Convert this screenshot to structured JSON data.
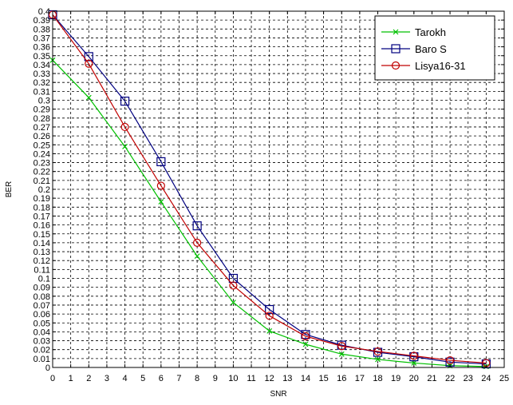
{
  "chart_data": {
    "type": "line",
    "xlabel": "SNR",
    "ylabel": "BER",
    "xlim": [
      0,
      25
    ],
    "ylim": [
      0,
      0.4
    ],
    "xticks": [
      0,
      1,
      2,
      3,
      4,
      5,
      6,
      7,
      8,
      9,
      10,
      11,
      12,
      13,
      14,
      15,
      16,
      17,
      18,
      19,
      20,
      21,
      22,
      23,
      24,
      25
    ],
    "yticks": [
      0,
      0.01,
      0.02,
      0.03,
      0.04,
      0.05,
      0.06,
      0.07,
      0.08,
      0.09,
      0.1,
      0.11,
      0.12,
      0.13,
      0.14,
      0.15,
      0.16,
      0.17,
      0.18,
      0.19,
      0.2,
      0.21,
      0.22,
      0.23,
      0.24,
      0.25,
      0.26,
      0.27,
      0.28,
      0.29,
      0.3,
      0.31,
      0.32,
      0.33,
      0.34,
      0.35,
      0.36,
      0.37,
      0.38,
      0.39,
      0.4
    ],
    "ytick_labels": [
      "0",
      "0.01",
      "0.02",
      "0.03",
      "0.04",
      "0.05",
      "0.06",
      "0.07",
      "0.08",
      "0.09",
      "0.1",
      "0.11",
      "0.12",
      "0.13",
      "0.14",
      "0.15",
      "0.16",
      "0.17",
      "0.18",
      "0.19",
      "0.2",
      "0.21",
      "0.22",
      "0.23",
      "0.24",
      "0.25",
      "0.26",
      "0.27",
      "0.28",
      "0.29",
      "0.3",
      "0.31",
      "0.32",
      "0.33",
      "0.34",
      "0.35",
      "0.36",
      "0.37",
      "0.38",
      "0.39",
      "0.4"
    ],
    "grid": true,
    "legend_position": "top-right",
    "x": [
      0,
      2,
      4,
      6,
      8,
      10,
      12,
      14,
      16,
      18,
      20,
      22,
      24
    ],
    "series": [
      {
        "name": "Tarokh",
        "color": "#00c000",
        "marker": "x",
        "values": [
          0.345,
          0.303,
          0.248,
          0.186,
          0.125,
          0.073,
          0.041,
          0.026,
          0.015,
          0.009,
          0.005,
          0.002,
          0.001
        ]
      },
      {
        "name": "Baro S",
        "color": "#000080",
        "marker": "square",
        "values": [
          0.396,
          0.349,
          0.299,
          0.231,
          0.159,
          0.1,
          0.065,
          0.037,
          0.025,
          0.017,
          0.012,
          0.006,
          0.004
        ]
      },
      {
        "name": "Lisya16-31",
        "color": "#c00000",
        "marker": "circle",
        "values": [
          0.396,
          0.341,
          0.27,
          0.204,
          0.14,
          0.092,
          0.058,
          0.035,
          0.024,
          0.018,
          0.013,
          0.008,
          0.005
        ]
      }
    ]
  }
}
